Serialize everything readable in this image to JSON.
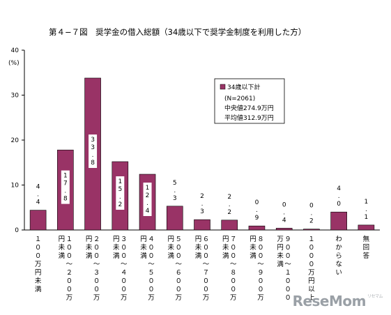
{
  "title": "第４−７図　奨学金の借入総額（34歳以下で奨学金制度を利用した方）",
  "watermark": {
    "brand": "ReseMom",
    "small": "リセマム"
  },
  "chart_data": {
    "type": "bar",
    "unit_label": "(%)",
    "ylim": [
      0,
      40
    ],
    "yticks": [
      0,
      10,
      20,
      30,
      40
    ],
    "grid": false,
    "bar_color": "#993366",
    "categories": [
      "１００万円未満",
      "１００～２００万円未満",
      "２００～３００万円未満",
      "３００～４００万円未満",
      "４００～５００万円未満",
      "５００～６００万円未満",
      "６００～７００万円未満",
      "７００～８００万円未満",
      "８００～９００万円未満",
      "９００～１０００万円未満",
      "１０００万円以上",
      "わからない",
      "無回答"
    ],
    "category_lines": [
      [
        "１００万円未満"
      ],
      [
        "１００～２００万",
        "円未満"
      ],
      [
        "２００～３００万",
        "円未満"
      ],
      [
        "３００～４００万",
        "円未満"
      ],
      [
        "４００～５００万",
        "円未満"
      ],
      [
        "５００～６００万",
        "円未満"
      ],
      [
        "６００～７００万",
        "円未満"
      ],
      [
        "７００～８００万",
        "円未満"
      ],
      [
        "８００～９００万",
        "円未満"
      ],
      [
        "９００～１０００",
        "万円未満"
      ],
      [
        "１０００万円以上"
      ],
      [
        "わからない"
      ],
      [
        "無回答"
      ]
    ],
    "values": [
      4.4,
      17.8,
      33.8,
      15.2,
      12.4,
      5.3,
      2.3,
      2.2,
      0.9,
      0.4,
      0.2,
      4.0,
      1.1
    ],
    "value_labels": [
      "4.4",
      "17.8",
      "33.8",
      "15.2",
      "12.4",
      "5.3",
      "2.3",
      "2.2",
      "0.9",
      "0.4",
      "0.2",
      "4.0",
      "1.1"
    ],
    "legend": {
      "series_name": "34歳以下計",
      "lines": [
        "(N=2061)",
        "中央値274.9万円",
        "平均値312.9万円"
      ]
    }
  }
}
